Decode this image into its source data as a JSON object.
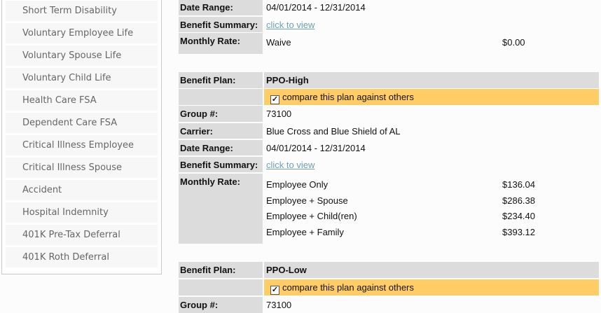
{
  "sidebar": {
    "items": [
      "Short Term Disability",
      "Voluntary Employee Life",
      "Voluntary Spouse Life",
      "Voluntary Child Life",
      "Health Care FSA",
      "Dependent Care FSA",
      "Critical Illness Employee",
      "Critical Illness Spouse",
      "Accident",
      "Hospital Indemnity",
      "401K Pre-Tax Deferral",
      "401K Roth Deferral"
    ]
  },
  "labels": {
    "date_range": "Date Range:",
    "benefit_summary": "Benefit Summary:",
    "monthly_rate": "Monthly Rate:",
    "benefit_plan": "Benefit Plan:",
    "group": "Group #:",
    "carrier": "Carrier:"
  },
  "link_text": "click to view",
  "compare_label": "compare this plan against others",
  "prev_plan": {
    "date_range": "04/01/2014 - 12/31/2014",
    "rate_label": "Waive",
    "rate_amount": "$0.00"
  },
  "plan1": {
    "name": "PPO-High",
    "compare_checked": true,
    "group": "73100",
    "carrier": "Blue Cross and Blue Shield of AL",
    "date_range": "04/01/2014 - 12/31/2014",
    "rates": [
      {
        "tier": "Employee Only",
        "amount": "$136.04"
      },
      {
        "tier": "Employee + Spouse",
        "amount": "$286.38"
      },
      {
        "tier": "Employee + Child(ren)",
        "amount": "$234.40"
      },
      {
        "tier": "Employee + Family",
        "amount": "$393.12"
      }
    ]
  },
  "plan2": {
    "name": "PPO-Low",
    "compare_checked": true,
    "group": "73100"
  },
  "colors": {
    "compare_highlight": "#ffcc66",
    "label_bg": "#dcdcdc",
    "link": "#6a9fb5"
  }
}
